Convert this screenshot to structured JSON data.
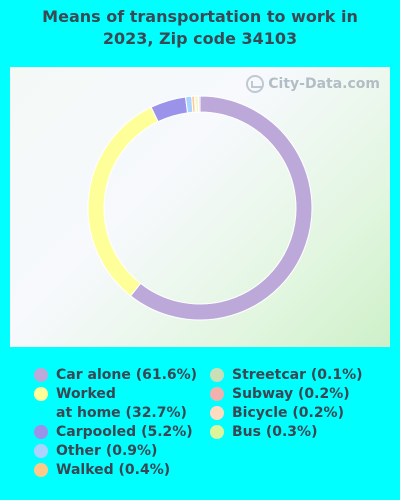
{
  "title_line1": "Means of transportation to work in",
  "title_line2": "2023, Zip code 34103",
  "watermark": "City-Data.com",
  "chart_data": {
    "type": "pie",
    "title": "Means of transportation to work in 2023, Zip code 34103",
    "donut": true,
    "categories": [
      "Car alone",
      "Worked at home",
      "Carpooled",
      "Other",
      "Walked",
      "Streetcar",
      "Subway",
      "Bicycle",
      "Bus"
    ],
    "values": [
      61.6,
      32.7,
      5.2,
      0.9,
      0.4,
      0.1,
      0.2,
      0.2,
      0.3
    ],
    "slice_order_clockwise_from_top": [
      "Car alone",
      "Worked at home",
      "Carpooled",
      "Other",
      "Walked",
      "Bicycle",
      "Bus",
      "Streetcar",
      "Subway"
    ],
    "colors": {
      "Car alone": "#bca9da",
      "Worked at home": "#ffff99",
      "Carpooled": "#9b92ea",
      "Other": "#aad4ff",
      "Walked": "#ffc98a",
      "Streetcar": "#c9dfb8",
      "Subway": "#f2b1ac",
      "Bicycle": "#ffdcbf",
      "Bus": "#ddf59a"
    },
    "legend_position": "bottom",
    "legend": [
      {
        "label": "Car alone (61.6%)",
        "category": "Car alone"
      },
      {
        "label": "Worked\nat home (32.7%)",
        "category": "Worked at home"
      },
      {
        "label": "Carpooled (5.2%)",
        "category": "Carpooled"
      },
      {
        "label": "Other (0.9%)",
        "category": "Other"
      },
      {
        "label": "Walked (0.4%)",
        "category": "Walked"
      },
      {
        "label": "Streetcar (0.1%)",
        "category": "Streetcar"
      },
      {
        "label": "Subway (0.2%)",
        "category": "Subway"
      },
      {
        "label": "Bicycle (0.2%)",
        "category": "Bicycle"
      },
      {
        "label": "Bus (0.3%)",
        "category": "Bus"
      }
    ]
  }
}
